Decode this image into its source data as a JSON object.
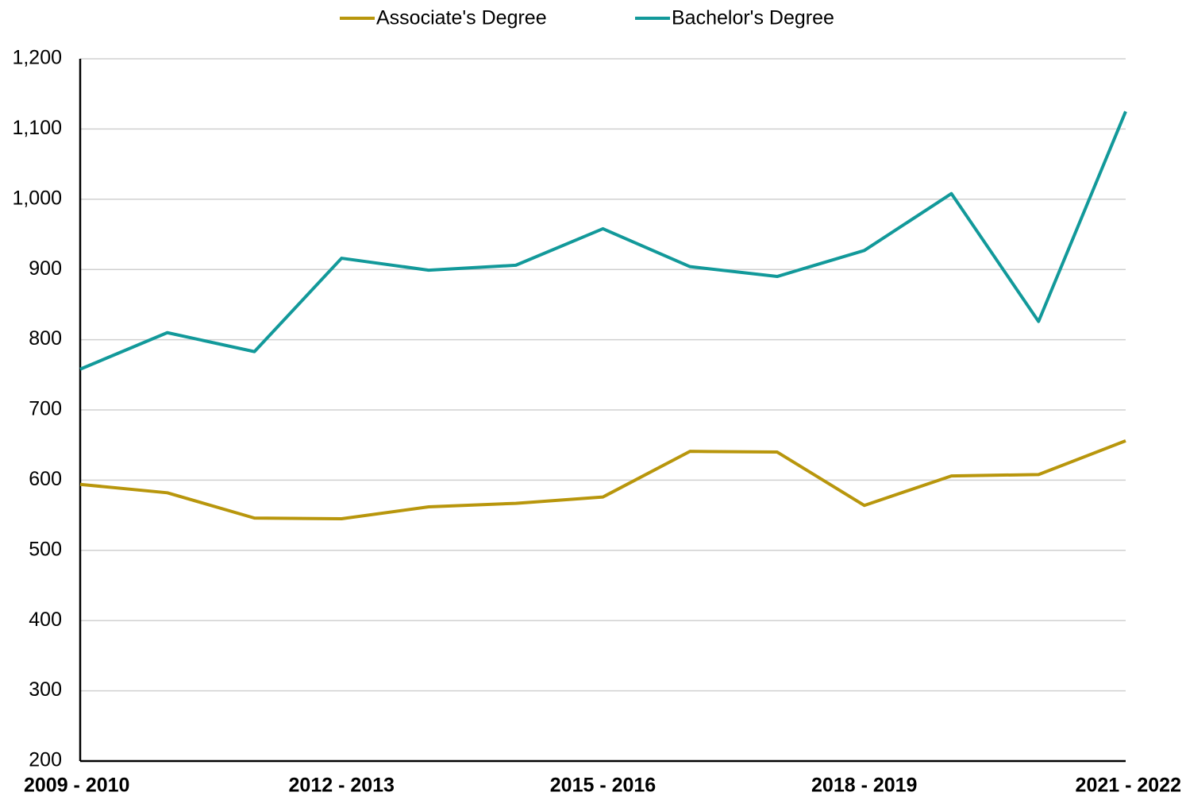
{
  "chart_data": {
    "type": "line",
    "categories": [
      "2009 - 2010",
      null,
      null,
      "2012 - 2013",
      null,
      null,
      "2015 - 2016",
      null,
      null,
      "2018 - 2019",
      null,
      null,
      "2021 - 2022"
    ],
    "series": [
      {
        "name": "Associate's Degree",
        "color": "#b8960c",
        "values": [
          594,
          582,
          546,
          545,
          562,
          567,
          576,
          641,
          640,
          564,
          606,
          608,
          656
        ]
      },
      {
        "name": "Bachelor's Degree",
        "color": "#12999a",
        "values": [
          758,
          810,
          783,
          916,
          899,
          906,
          958,
          904,
          890,
          927,
          1008,
          826,
          1125
        ]
      }
    ],
    "ylim": [
      200,
      1200
    ],
    "yticks": [
      200,
      300,
      400,
      500,
      600,
      700,
      800,
      900,
      {
        "value": 1000,
        "label": "1,000"
      },
      {
        "value": 1100,
        "label": "1,100"
      },
      {
        "value": 1200,
        "label": "1,200"
      }
    ],
    "grid": true,
    "legend": "top"
  }
}
